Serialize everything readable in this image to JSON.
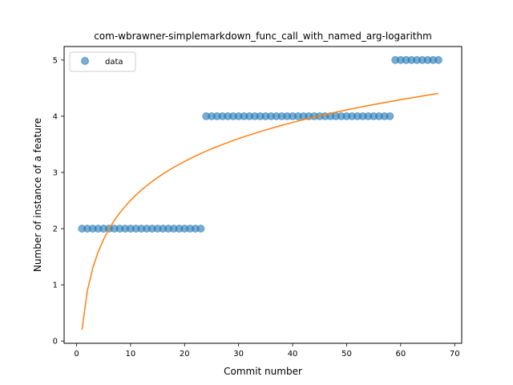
{
  "chart_data": {
    "type": "scatter",
    "title": "com-wbrawner-simplemarkdown_func_call_with_named_arg-logarithm",
    "xlabel": "Commit number",
    "ylabel": "Number of instance of a feature",
    "xlim": [
      -2.3,
      71.3
    ],
    "ylim": [
      -0.04,
      5.24
    ],
    "xticks": [
      0,
      10,
      20,
      30,
      40,
      50,
      60,
      70
    ],
    "yticks": [
      0,
      1,
      2,
      3,
      4,
      5
    ],
    "grid": false,
    "legend_position": "top-left",
    "series": [
      {
        "name": "data",
        "kind": "scatter",
        "color": "#1f77b4",
        "x": [
          1,
          2,
          3,
          4,
          5,
          6,
          7,
          8,
          9,
          10,
          11,
          12,
          13,
          14,
          15,
          16,
          17,
          18,
          19,
          20,
          21,
          22,
          23,
          24,
          25,
          26,
          27,
          28,
          29,
          30,
          31,
          32,
          33,
          34,
          35,
          36,
          37,
          38,
          39,
          40,
          41,
          42,
          43,
          44,
          45,
          46,
          47,
          48,
          49,
          50,
          51,
          52,
          53,
          54,
          55,
          56,
          57,
          58,
          59,
          60,
          61,
          62,
          63,
          64,
          65,
          66,
          67
        ],
        "y": [
          2,
          2,
          2,
          2,
          2,
          2,
          2,
          2,
          2,
          2,
          2,
          2,
          2,
          2,
          2,
          2,
          2,
          2,
          2,
          2,
          2,
          2,
          2,
          4,
          4,
          4,
          4,
          4,
          4,
          4,
          4,
          4,
          4,
          4,
          4,
          4,
          4,
          4,
          4,
          4,
          4,
          4,
          4,
          4,
          4,
          4,
          4,
          4,
          4,
          4,
          4,
          4,
          4,
          4,
          4,
          4,
          4,
          4,
          5,
          5,
          5,
          5,
          5,
          5,
          5,
          5,
          5
        ]
      },
      {
        "kind": "line",
        "color": "#ff7f0e",
        "fit": {
          "model": "logarithmic",
          "a": 0.2,
          "b": 1.0,
          "x_start": 1,
          "x_end": 67
        }
      }
    ]
  }
}
